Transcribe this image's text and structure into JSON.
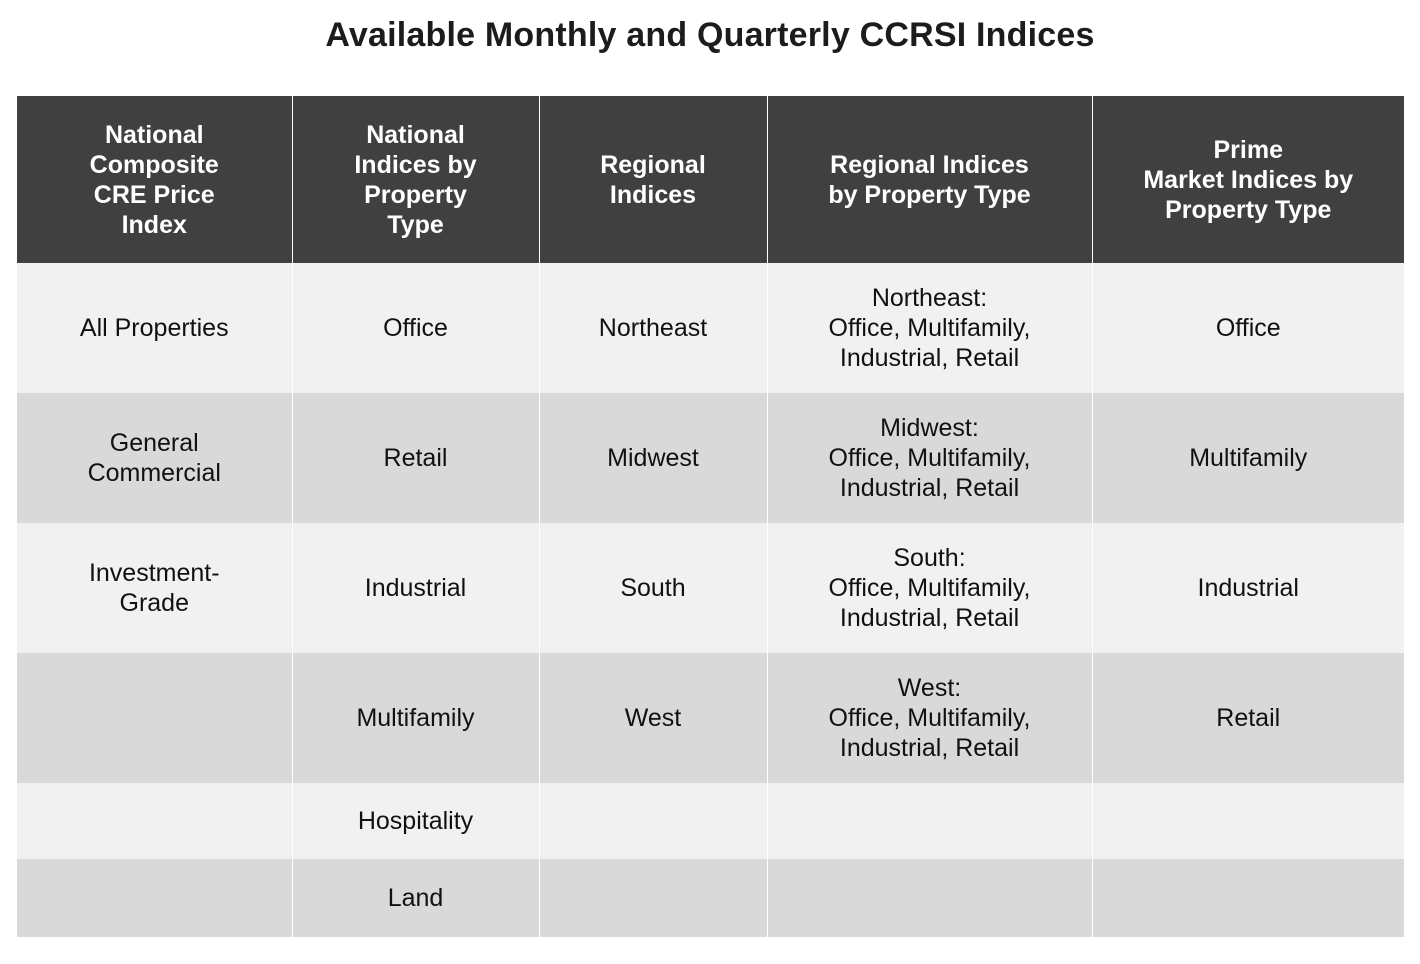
{
  "title": "Available Monthly and Quarterly CCRSI Indices",
  "table": {
    "headers": [
      "National\nComposite\nCRE Price\nIndex",
      "National\nIndices by\nProperty\nType",
      "Regional\nIndices",
      "Regional Indices\nby Property Type",
      "Prime\nMarket Indices by\nProperty Type"
    ],
    "rows": [
      [
        "All Properties",
        "Office",
        "Northeast",
        "Northeast:\nOffice, Multifamily,\nIndustrial, Retail",
        "Office"
      ],
      [
        "General\nCommercial",
        "Retail",
        "Midwest",
        "Midwest:\nOffice, Multifamily,\nIndustrial, Retail",
        "Multifamily"
      ],
      [
        "Investment-\nGrade",
        "Industrial",
        "South",
        "South:\nOffice, Multifamily,\nIndustrial, Retail",
        "Industrial"
      ],
      [
        "",
        "Multifamily",
        "West",
        "West:\nOffice, Multifamily,\nIndustrial, Retail",
        "Retail"
      ],
      [
        "",
        "Hospitality",
        "",
        "",
        ""
      ],
      [
        "",
        "Land",
        "",
        "",
        ""
      ]
    ]
  },
  "colors": {
    "header_bg": "#404040",
    "header_text": "#ffffff",
    "row_light": "#f1f1f1",
    "row_dark": "#d9d9d9"
  }
}
